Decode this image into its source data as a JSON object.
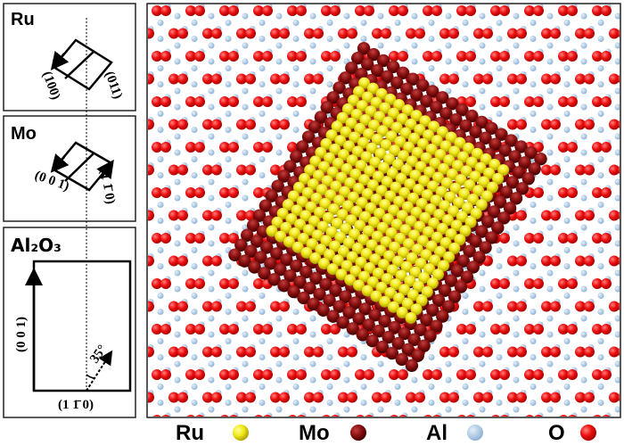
{
  "panels": [
    {
      "label": "Ru",
      "axis_a": "(100)",
      "axis_b": "(011)"
    },
    {
      "label": "Mo",
      "axis_a": "(0 0 1)",
      "axis_b": "(1 1̄ 0)"
    },
    {
      "label": "Al₂O₃",
      "axis_a": "(0 0 1)",
      "axis_b": "(1 1̄ 0)",
      "angle": "35°"
    }
  ],
  "legend": [
    {
      "label": "Ru"
    },
    {
      "label": "Mo"
    },
    {
      "label": "Al"
    },
    {
      "label": "O"
    }
  ]
}
